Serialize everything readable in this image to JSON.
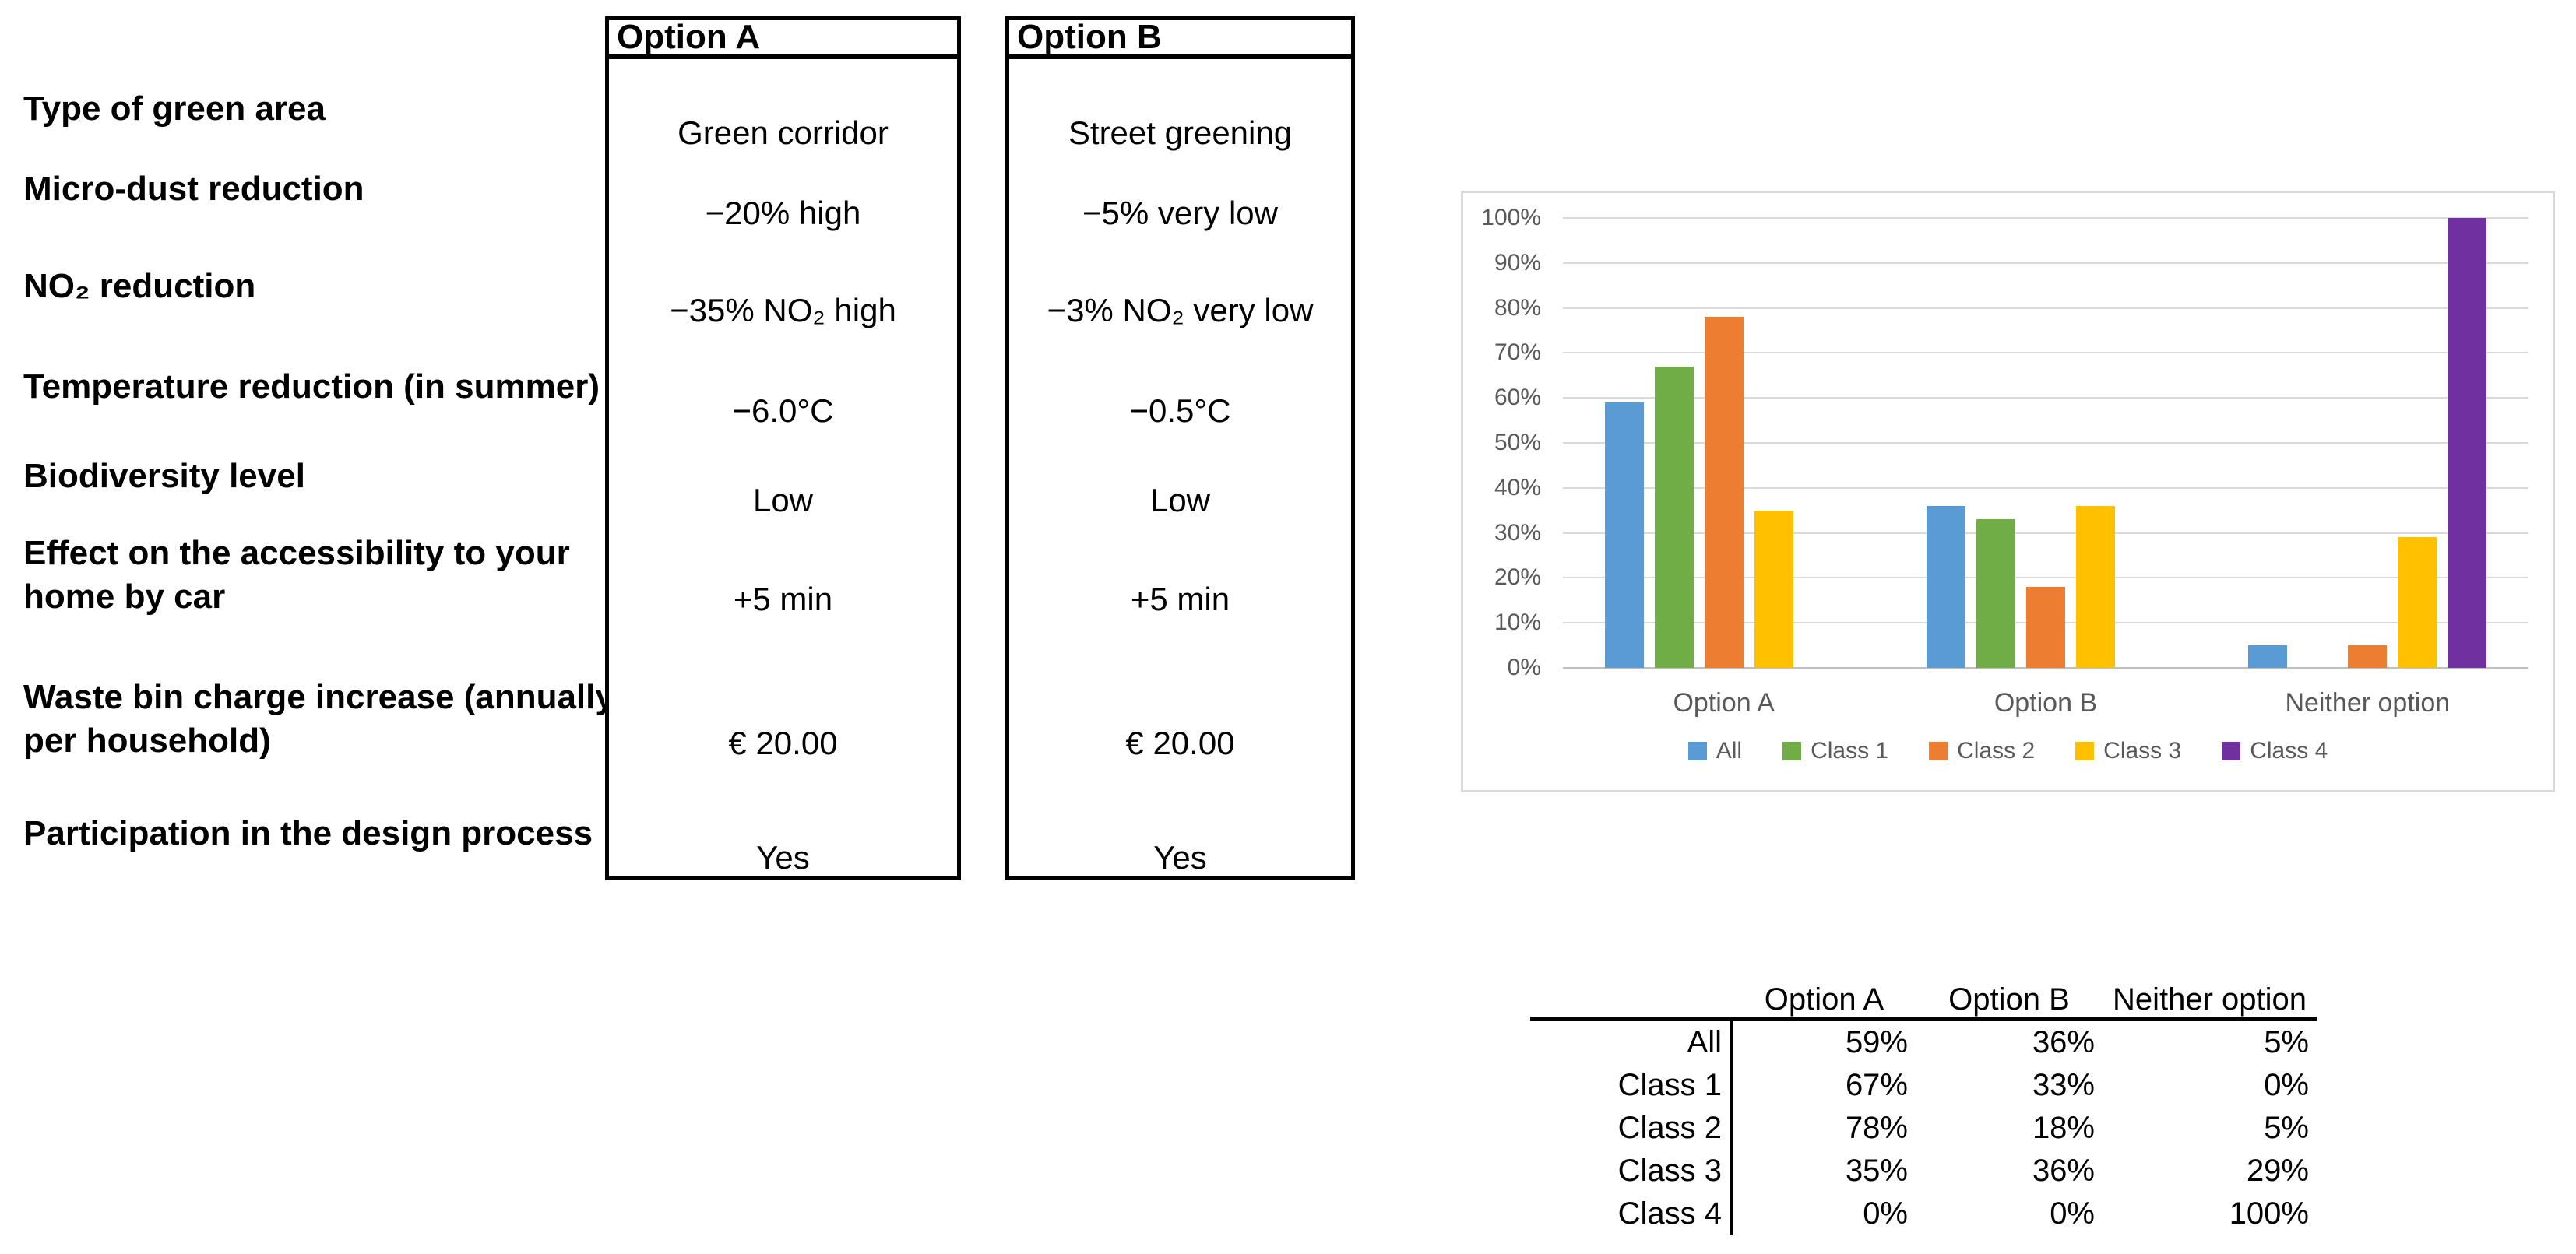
{
  "comparison": {
    "headers": [
      "Option A",
      "Option B"
    ],
    "rows": [
      {
        "label": "Type of green area",
        "a": "Green corridor",
        "b": "Street greening"
      },
      {
        "label": "Micro-dust reduction",
        "a": "−20% high",
        "b": "−5% very low"
      },
      {
        "label": "NO₂ reduction",
        "a": "−35% NO₂ high",
        "b": "−3% NO₂ very low"
      },
      {
        "label": "Temperature reduction (in summer)",
        "a": "−6.0°C",
        "b": "−0.5°C"
      },
      {
        "label": "Biodiversity level",
        "a": "Low",
        "b": "Low"
      },
      {
        "label": "Effect on the accessibility to your home by car",
        "a": "+5 min",
        "b": "+5 min"
      },
      {
        "label": "Waste bin charge increase (annually per household)",
        "a": "€ 20.00",
        "b": "€ 20.00"
      },
      {
        "label": "Participation in the design process",
        "a": "Yes",
        "b": "Yes"
      }
    ]
  },
  "chart_data": {
    "type": "bar",
    "categories": [
      "Option A",
      "Option B",
      "Neither option"
    ],
    "series": [
      {
        "name": "All",
        "color": "#5B9BD5",
        "values": [
          59,
          36,
          5
        ]
      },
      {
        "name": "Class 1",
        "color": "#70AD47",
        "values": [
          67,
          33,
          0
        ]
      },
      {
        "name": "Class 2",
        "color": "#ED7D31",
        "values": [
          78,
          18,
          5
        ]
      },
      {
        "name": "Class 3",
        "color": "#FFC000",
        "values": [
          35,
          36,
          29
        ]
      },
      {
        "name": "Class 4",
        "color": "#7030A0",
        "values": [
          0,
          0,
          100
        ]
      }
    ],
    "ylim": [
      0,
      100
    ],
    "ytick_step": 10,
    "ytick_labels": [
      "0%",
      "10%",
      "20%",
      "30%",
      "40%",
      "50%",
      "60%",
      "70%",
      "80%",
      "90%",
      "100%"
    ],
    "grid": true,
    "gridline_color": "#D9D9D9",
    "axis_text_color": "#595959",
    "legend_position": "bottom"
  },
  "results_table": {
    "col_headers": [
      "Option A",
      "Option B",
      "Neither option"
    ],
    "rows": [
      {
        "label": "All",
        "values": [
          "59%",
          "36%",
          "5%"
        ]
      },
      {
        "label": "Class 1",
        "values": [
          "67%",
          "33%",
          "0%"
        ]
      },
      {
        "label": "Class 2",
        "values": [
          "78%",
          "18%",
          "5%"
        ]
      },
      {
        "label": "Class 3",
        "values": [
          "35%",
          "36%",
          "29%"
        ]
      },
      {
        "label": "Class 4",
        "values": [
          "0%",
          "0%",
          "100%"
        ]
      }
    ]
  }
}
